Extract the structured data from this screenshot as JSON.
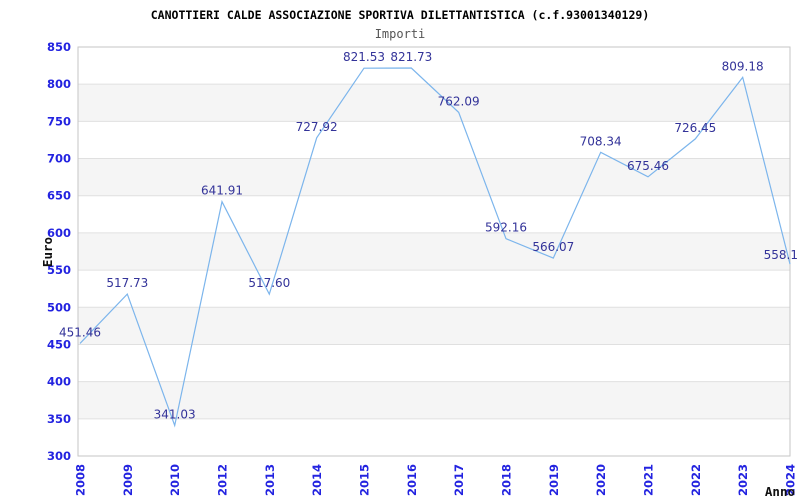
{
  "window": {
    "background": "#ffffff"
  },
  "chart_data": {
    "type": "line",
    "title": "CANOTTIERI CALDE ASSOCIAZIONE SPORTIVA DILETTANTISTICA (c.f.93001340129)",
    "subtitle": "Importi",
    "xlabel": "Anno",
    "ylabel": "Euro",
    "categories": [
      "2008",
      "2009",
      "2010",
      "2012",
      "2013",
      "2014",
      "2015",
      "2016",
      "2017",
      "2018",
      "2019",
      "2020",
      "2021",
      "2022",
      "2023",
      "2024"
    ],
    "series": [
      {
        "name": "Importi",
        "values": [
          451.46,
          517.73,
          341.03,
          641.91,
          517.6,
          727.92,
          821.53,
          821.73,
          762.09,
          592.16,
          566.07,
          708.34,
          675.46,
          726.45,
          809.18,
          558.1
        ],
        "point_labels": [
          "451.46",
          "517.73",
          "341.03",
          "641.91",
          "517.60",
          "727.92",
          "821.53",
          "821.73",
          "762.09",
          "592.16",
          "566.07",
          "708.34",
          "675.46",
          "726.45",
          "809.18",
          "558.1"
        ]
      }
    ],
    "ylim": [
      300,
      850
    ],
    "ytick_step": 50,
    "ytick_labels": [
      "300",
      "350",
      "400",
      "450",
      "500",
      "550",
      "600",
      "650",
      "700",
      "750",
      "800",
      "850"
    ],
    "grid": true,
    "grid_style": "alternating horizontal bands",
    "legend_position": "none",
    "colors": {
      "line": "#7cb5ec",
      "point_label": "#333399",
      "axis_tick_label": "#2323e0",
      "title": "#000000",
      "subtitle": "#555555",
      "axis_title": "#111111",
      "band_fill": "#f5f5f5",
      "gridline": "#e0e0e0",
      "plot_border": "#c6c6c6",
      "plot_background": "#ffffff"
    }
  }
}
